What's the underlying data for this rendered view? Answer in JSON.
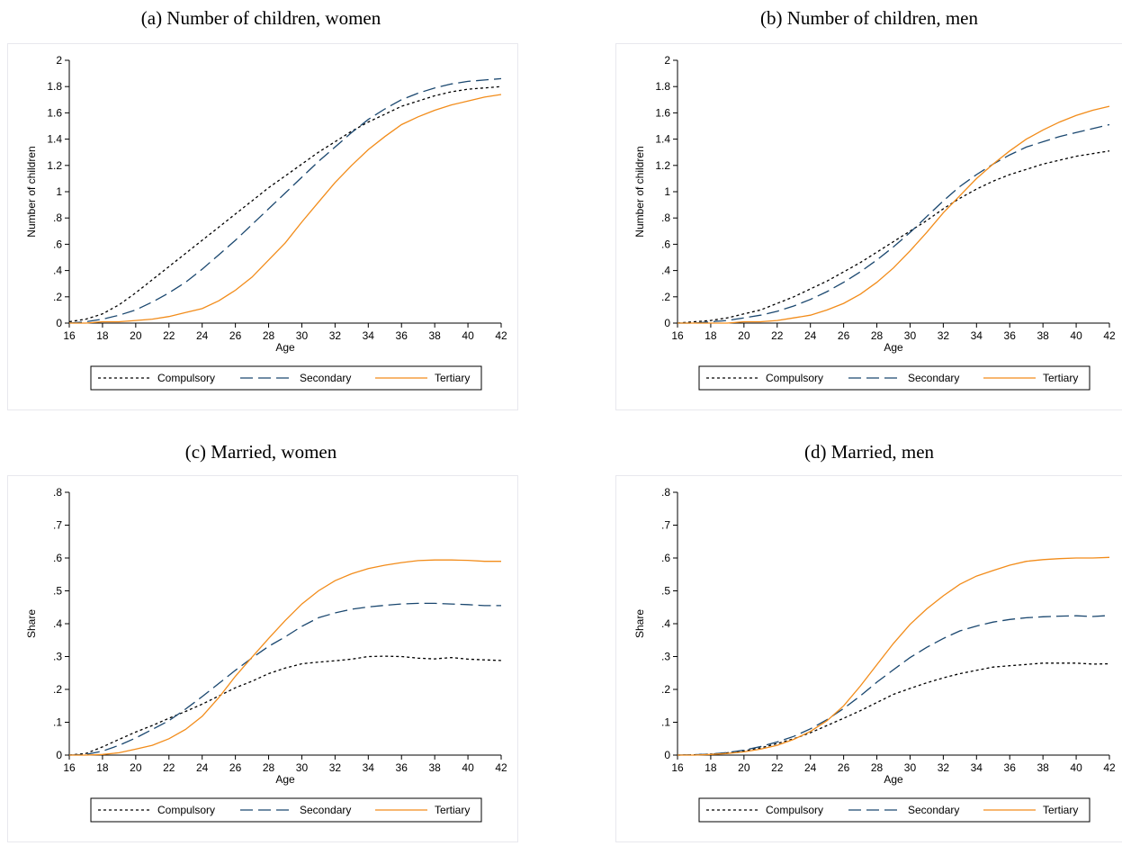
{
  "panels": [
    {
      "title": "(a) Number of children, women",
      "chart_data": {
        "type": "line",
        "xlabel": "Age",
        "ylabel": "Number of children",
        "xlim": [
          16,
          42
        ],
        "ylim": [
          0,
          2
        ],
        "xticks": [
          16,
          18,
          20,
          22,
          24,
          26,
          28,
          30,
          32,
          34,
          36,
          38,
          40,
          42
        ],
        "yticks": [
          {
            "v": 0,
            "l": "0"
          },
          {
            "v": 0.2,
            "l": ".2"
          },
          {
            "v": 0.4,
            "l": ".4"
          },
          {
            "v": 0.6,
            "l": ".6"
          },
          {
            "v": 0.8,
            "l": ".8"
          },
          {
            "v": 1,
            "l": "1"
          },
          {
            "v": 1.2,
            "l": "1.2"
          },
          {
            "v": 1.4,
            "l": "1.4"
          },
          {
            "v": 1.6,
            "l": "1.6"
          },
          {
            "v": 1.8,
            "l": "1.8"
          },
          {
            "v": 2,
            "l": "2"
          }
        ],
        "x": [
          16,
          17,
          18,
          19,
          20,
          21,
          22,
          23,
          24,
          25,
          26,
          27,
          28,
          29,
          30,
          31,
          32,
          33,
          34,
          35,
          36,
          37,
          38,
          39,
          40,
          41,
          42
        ],
        "series": [
          {
            "name": "Compulsory",
            "color": "#000000",
            "dash": "3,3",
            "values": [
              0.01,
              0.03,
              0.07,
              0.14,
              0.23,
              0.33,
              0.43,
              0.53,
              0.63,
              0.73,
              0.83,
              0.93,
              1.03,
              1.12,
              1.21,
              1.3,
              1.38,
              1.46,
              1.53,
              1.59,
              1.65,
              1.69,
              1.73,
              1.76,
              1.78,
              1.79,
              1.8
            ]
          },
          {
            "name": "Secondary",
            "color": "#1a476f",
            "dash": "14,6",
            "values": [
              0.0,
              0.01,
              0.03,
              0.06,
              0.1,
              0.16,
              0.23,
              0.31,
              0.41,
              0.52,
              0.63,
              0.75,
              0.87,
              0.99,
              1.11,
              1.23,
              1.34,
              1.45,
              1.55,
              1.63,
              1.7,
              1.75,
              1.79,
              1.82,
              1.84,
              1.85,
              1.86
            ]
          },
          {
            "name": "Tertiary",
            "color": "#f28c1a",
            "dash": "",
            "values": [
              0.0,
              0.0,
              0.01,
              0.01,
              0.02,
              0.03,
              0.05,
              0.08,
              0.11,
              0.17,
              0.25,
              0.35,
              0.48,
              0.61,
              0.77,
              0.92,
              1.07,
              1.2,
              1.32,
              1.42,
              1.51,
              1.57,
              1.62,
              1.66,
              1.69,
              1.72,
              1.74
            ]
          }
        ],
        "legend": "bottom"
      }
    },
    {
      "title": "(b) Number of children, men",
      "chart_data": {
        "type": "line",
        "xlabel": "Age",
        "ylabel": "Number of children",
        "xlim": [
          16,
          42
        ],
        "ylim": [
          0,
          2
        ],
        "xticks": [
          16,
          18,
          20,
          22,
          24,
          26,
          28,
          30,
          32,
          34,
          36,
          38,
          40,
          42
        ],
        "yticks": [
          {
            "v": 0,
            "l": "0"
          },
          {
            "v": 0.2,
            "l": ".2"
          },
          {
            "v": 0.4,
            "l": ".4"
          },
          {
            "v": 0.6,
            "l": ".6"
          },
          {
            "v": 0.8,
            "l": ".8"
          },
          {
            "v": 1,
            "l": "1"
          },
          {
            "v": 1.2,
            "l": "1.2"
          },
          {
            "v": 1.4,
            "l": "1.4"
          },
          {
            "v": 1.6,
            "l": "1.6"
          },
          {
            "v": 1.8,
            "l": "1.8"
          },
          {
            "v": 2,
            "l": "2"
          }
        ],
        "x": [
          16,
          17,
          18,
          19,
          20,
          21,
          22,
          23,
          24,
          25,
          26,
          27,
          28,
          29,
          30,
          31,
          32,
          33,
          34,
          35,
          36,
          37,
          38,
          39,
          40,
          41,
          42
        ],
        "series": [
          {
            "name": "Compulsory",
            "color": "#000000",
            "dash": "3,3",
            "values": [
              0.0,
              0.01,
              0.02,
              0.04,
              0.07,
              0.1,
              0.15,
              0.2,
              0.26,
              0.32,
              0.39,
              0.46,
              0.54,
              0.62,
              0.7,
              0.78,
              0.87,
              0.95,
              1.02,
              1.08,
              1.13,
              1.17,
              1.21,
              1.24,
              1.27,
              1.29,
              1.31
            ]
          },
          {
            "name": "Secondary",
            "color": "#1a476f",
            "dash": "14,6",
            "values": [
              0.0,
              0.0,
              0.01,
              0.02,
              0.04,
              0.06,
              0.09,
              0.13,
              0.18,
              0.24,
              0.31,
              0.39,
              0.48,
              0.58,
              0.69,
              0.81,
              0.93,
              1.04,
              1.13,
              1.21,
              1.28,
              1.34,
              1.38,
              1.42,
              1.45,
              1.48,
              1.51
            ]
          },
          {
            "name": "Tertiary",
            "color": "#f28c1a",
            "dash": "",
            "values": [
              0.0,
              0.0,
              0.0,
              0.0,
              0.01,
              0.01,
              0.02,
              0.04,
              0.06,
              0.1,
              0.15,
              0.22,
              0.31,
              0.42,
              0.55,
              0.69,
              0.84,
              0.97,
              1.1,
              1.21,
              1.31,
              1.4,
              1.47,
              1.53,
              1.58,
              1.62,
              1.65
            ]
          }
        ],
        "legend": "bottom"
      }
    },
    {
      "title": "(c) Married, women",
      "chart_data": {
        "type": "line",
        "xlabel": "Age",
        "ylabel": "Share",
        "xlim": [
          16,
          42
        ],
        "ylim": [
          0,
          0.8
        ],
        "xticks": [
          16,
          18,
          20,
          22,
          24,
          26,
          28,
          30,
          32,
          34,
          36,
          38,
          40,
          42
        ],
        "yticks": [
          {
            "v": 0,
            "l": "0"
          },
          {
            "v": 0.1,
            "l": ".1"
          },
          {
            "v": 0.2,
            "l": ".2"
          },
          {
            "v": 0.3,
            "l": ".3"
          },
          {
            "v": 0.4,
            "l": ".4"
          },
          {
            "v": 0.5,
            "l": ".5"
          },
          {
            "v": 0.6,
            "l": ".6"
          },
          {
            "v": 0.7,
            "l": ".7"
          },
          {
            "v": 0.8,
            "l": ".8"
          }
        ],
        "x": [
          16,
          17,
          18,
          19,
          20,
          21,
          22,
          23,
          24,
          25,
          26,
          27,
          28,
          29,
          30,
          31,
          32,
          33,
          34,
          35,
          36,
          37,
          38,
          39,
          40,
          41,
          42
        ],
        "series": [
          {
            "name": "Compulsory",
            "color": "#000000",
            "dash": "3,3",
            "values": [
              0.0,
              0.005,
              0.025,
              0.048,
              0.07,
              0.09,
              0.112,
              0.133,
              0.155,
              0.18,
              0.205,
              0.225,
              0.248,
              0.265,
              0.278,
              0.283,
              0.287,
              0.292,
              0.3,
              0.301,
              0.3,
              0.295,
              0.293,
              0.297,
              0.292,
              0.29,
              0.288
            ]
          },
          {
            "name": "Secondary",
            "color": "#1a476f",
            "dash": "14,6",
            "values": [
              0.0,
              0.002,
              0.012,
              0.03,
              0.052,
              0.078,
              0.105,
              0.14,
              0.178,
              0.218,
              0.258,
              0.296,
              0.331,
              0.36,
              0.392,
              0.418,
              0.433,
              0.444,
              0.451,
              0.456,
              0.46,
              0.462,
              0.462,
              0.46,
              0.458,
              0.455,
              0.455
            ]
          },
          {
            "name": "Tertiary",
            "color": "#f28c1a",
            "dash": "",
            "values": [
              0.0,
              0.0,
              0.002,
              0.007,
              0.018,
              0.03,
              0.05,
              0.078,
              0.118,
              0.175,
              0.24,
              0.298,
              0.355,
              0.41,
              0.46,
              0.5,
              0.531,
              0.552,
              0.568,
              0.578,
              0.586,
              0.592,
              0.594,
              0.594,
              0.593,
              0.59,
              0.59
            ]
          }
        ],
        "legend": "bottom"
      }
    },
    {
      "title": "(d) Married, men",
      "chart_data": {
        "type": "line",
        "xlabel": "Age",
        "ylabel": "Share",
        "xlim": [
          16,
          42
        ],
        "ylim": [
          0,
          0.8
        ],
        "xticks": [
          16,
          18,
          20,
          22,
          24,
          26,
          28,
          30,
          32,
          34,
          36,
          38,
          40,
          42
        ],
        "yticks": [
          {
            "v": 0,
            "l": "0"
          },
          {
            "v": 0.1,
            "l": ".1"
          },
          {
            "v": 0.2,
            "l": ".2"
          },
          {
            "v": 0.3,
            "l": ".3"
          },
          {
            "v": 0.4,
            "l": ".4"
          },
          {
            "v": 0.5,
            "l": ".5"
          },
          {
            "v": 0.6,
            "l": ".6"
          },
          {
            "v": 0.7,
            "l": ".7"
          },
          {
            "v": 0.8,
            "l": ".8"
          }
        ],
        "x": [
          16,
          17,
          18,
          19,
          20,
          21,
          22,
          23,
          24,
          25,
          26,
          27,
          28,
          29,
          30,
          31,
          32,
          33,
          34,
          35,
          36,
          37,
          38,
          39,
          40,
          41,
          42
        ],
        "series": [
          {
            "name": "Compulsory",
            "color": "#000000",
            "dash": "3,3",
            "values": [
              0.0,
              0.001,
              0.003,
              0.007,
              0.013,
              0.022,
              0.035,
              0.05,
              0.068,
              0.09,
              0.112,
              0.135,
              0.16,
              0.185,
              0.203,
              0.22,
              0.235,
              0.248,
              0.258,
              0.268,
              0.272,
              0.276,
              0.28,
              0.28,
              0.28,
              0.277,
              0.278
            ]
          },
          {
            "name": "Secondary",
            "color": "#1a476f",
            "dash": "14,6",
            "values": [
              0.0,
              0.001,
              0.003,
              0.008,
              0.015,
              0.026,
              0.04,
              0.057,
              0.08,
              0.108,
              0.142,
              0.18,
              0.222,
              0.26,
              0.297,
              0.328,
              0.355,
              0.378,
              0.393,
              0.405,
              0.413,
              0.418,
              0.421,
              0.423,
              0.424,
              0.422,
              0.425
            ]
          },
          {
            "name": "Tertiary",
            "color": "#f28c1a",
            "dash": "",
            "values": [
              0.0,
              0.0,
              0.002,
              0.005,
              0.01,
              0.018,
              0.03,
              0.048,
              0.072,
              0.105,
              0.15,
              0.21,
              0.275,
              0.34,
              0.398,
              0.445,
              0.485,
              0.52,
              0.545,
              0.562,
              0.578,
              0.59,
              0.595,
              0.598,
              0.6,
              0.6,
              0.602
            ]
          }
        ],
        "legend": "bottom"
      }
    }
  ]
}
